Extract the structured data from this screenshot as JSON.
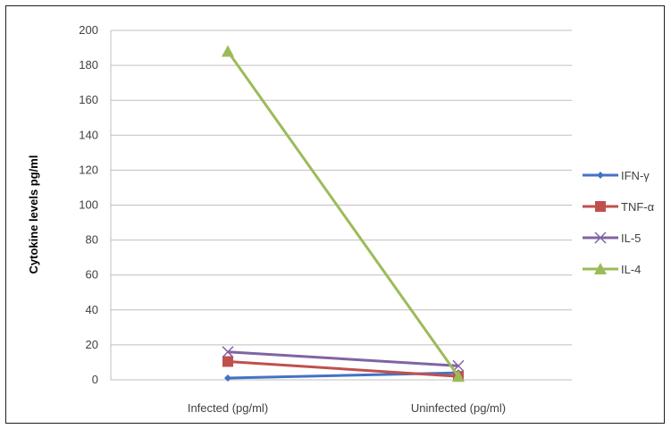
{
  "chart_data": {
    "type": "line",
    "title": "",
    "xlabel": "",
    "ylabel": "Cytokine levels  pg/ml",
    "categories": [
      "Infected (pg/ml)",
      "Uninfected (pg/ml)"
    ],
    "ylim": [
      0,
      200
    ],
    "yticks": [
      0,
      20,
      40,
      60,
      80,
      100,
      120,
      140,
      160,
      180,
      200
    ],
    "grid": true,
    "legend_position": "right",
    "series": [
      {
        "name": "IFN-γ",
        "values": [
          1,
          4
        ],
        "color": "#4472C4",
        "marker": "diamond"
      },
      {
        "name": "TNF-α",
        "values": [
          10.5,
          2
        ],
        "color": "#C0504D",
        "marker": "square"
      },
      {
        "name": "IL-5",
        "values": [
          16,
          8
        ],
        "color": "#8064A2",
        "marker": "x"
      },
      {
        "name": "IL-4",
        "values": [
          188,
          2
        ],
        "color": "#9BBB59",
        "marker": "triangle"
      }
    ]
  }
}
